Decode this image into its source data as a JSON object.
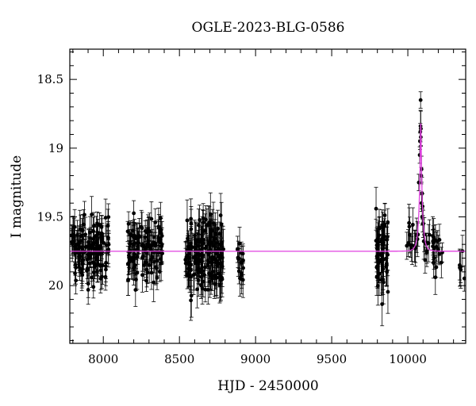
{
  "chart_data": {
    "type": "scatter",
    "title": "OGLE-2023-BLG-0586",
    "xlabel": "HJD - 2450000",
    "ylabel": "I magnitude",
    "xlim": [
      7780,
      10380
    ],
    "ylim": [
      20.42,
      18.28
    ],
    "y_inverted": true,
    "x_ticks": [
      8000,
      8500,
      9000,
      9500,
      10000
    ],
    "x_tick_labels": [
      "8000",
      "8500",
      "9000",
      "9500",
      "10000"
    ],
    "y_ticks": [
      18.5,
      19,
      19.5,
      20
    ],
    "y_tick_labels": [
      "18.5",
      "19",
      "19.5",
      "20"
    ],
    "baseline_mag": 19.75,
    "colors": {
      "data": "#000000",
      "model": "#e040e0",
      "axes": "#000000"
    },
    "seasons": [
      {
        "start": 7790,
        "end": 8040,
        "n": 130,
        "center_mag": 19.75,
        "scatter": 0.11,
        "err": 0.1
      },
      {
        "start": 8160,
        "end": 8390,
        "n": 115,
        "center_mag": 19.74,
        "scatter": 0.11,
        "err": 0.1
      },
      {
        "start": 8530,
        "end": 8790,
        "n": 170,
        "center_mag": 19.76,
        "scatter": 0.13,
        "err": 0.12
      },
      {
        "start": 8880,
        "end": 8920,
        "n": 16,
        "center_mag": 19.82,
        "scatter": 0.09,
        "err": 0.1
      },
      {
        "start": 9790,
        "end": 9870,
        "n": 60,
        "center_mag": 19.76,
        "scatter": 0.15,
        "err": 0.12
      },
      {
        "start": 9990,
        "end": 10230,
        "n": 50,
        "center_mag": 19.7,
        "scatter": 0.09,
        "err": 0.1
      },
      {
        "start": 10340,
        "end": 10375,
        "n": 6,
        "center_mag": 19.85,
        "scatter": 0.08,
        "err": 0.1
      }
    ],
    "model": {
      "t0": 10085,
      "peak_mag": 18.82,
      "tE": 22,
      "u0": 0.12
    },
    "peak_points": [
      {
        "x": 10072,
        "y": 19.25
      },
      {
        "x": 10078,
        "y": 19.05
      },
      {
        "x": 10080,
        "y": 18.95
      },
      {
        "x": 10082,
        "y": 18.88
      },
      {
        "x": 10084,
        "y": 18.65
      },
      {
        "x": 10085,
        "y": 18.92
      },
      {
        "x": 10088,
        "y": 19.2
      },
      {
        "x": 10090,
        "y": 19.4
      },
      {
        "x": 10094,
        "y": 19.5
      },
      {
        "x": 10098,
        "y": 19.55
      }
    ]
  }
}
